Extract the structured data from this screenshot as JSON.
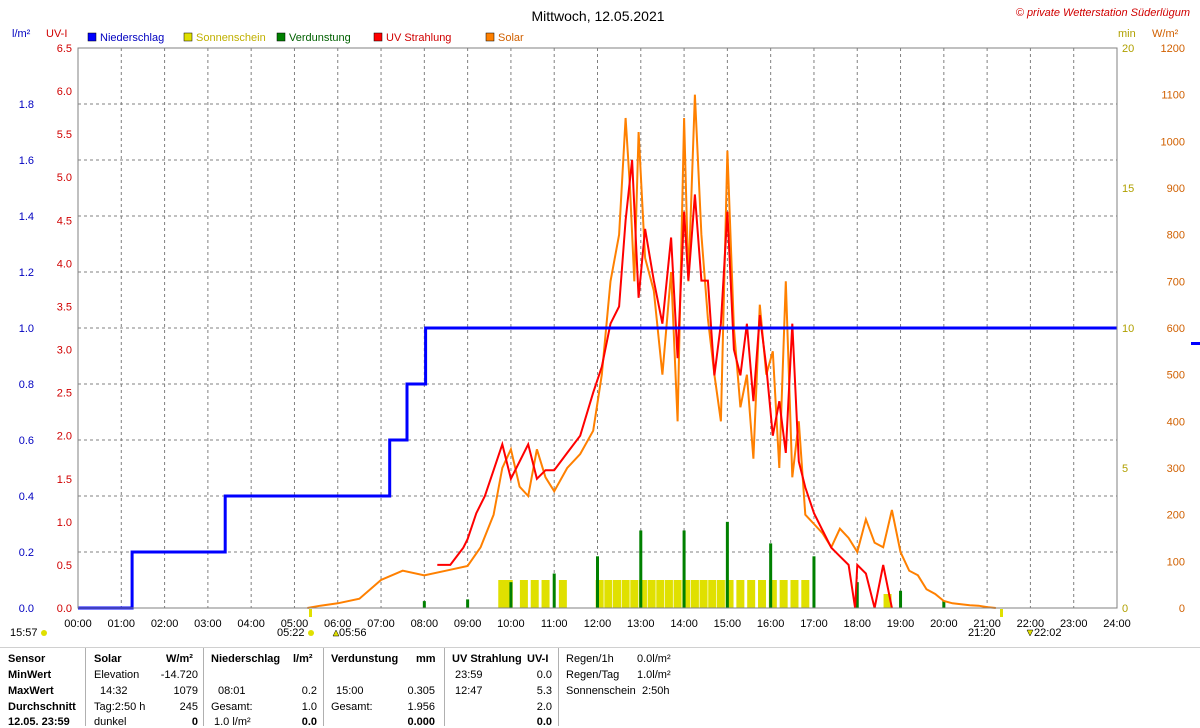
{
  "header": {
    "title": "Mittwoch, 12.05.2021",
    "copyright": "© private Wetterstation Süderlügum",
    "left_unit_1": "l/m²",
    "left_unit_2": "UV-I",
    "right_unit_1": "min",
    "right_unit_2": "W/m²"
  },
  "legend": [
    {
      "label": "Niederschlag",
      "color": "#0000ff"
    },
    {
      "label": "Sonnenschein",
      "color": "#e0e000"
    },
    {
      "label": "Verdunstung",
      "color": "#008000"
    },
    {
      "label": "UV Strahlung",
      "color": "#ff0000"
    },
    {
      "label": "Solar",
      "color": "#ff8000"
    }
  ],
  "chart_data": {
    "type": "line",
    "x_ticks": [
      "00:00",
      "01:00",
      "02:00",
      "03:00",
      "04:00",
      "05:00",
      "06:00",
      "07:00",
      "08:00",
      "09:00",
      "10:00",
      "11:00",
      "12:00",
      "13:00",
      "14:00",
      "15:00",
      "16:00",
      "17:00",
      "18:00",
      "19:00",
      "20:00",
      "21:00",
      "22:00",
      "23:00",
      "24:00"
    ],
    "xlim_hours": [
      0,
      24
    ],
    "axis_rain": {
      "label": "l/m²",
      "range": [
        0,
        2.0
      ],
      "ticks": [
        "0.0",
        "0.2",
        "0.4",
        "0.6",
        "0.8",
        "1.0",
        "1.2",
        "1.4",
        "1.6",
        "1.8"
      ]
    },
    "axis_uv": {
      "label": "UV-I",
      "range": [
        0,
        6.5
      ],
      "ticks": [
        "0.0",
        "0.5",
        "1.0",
        "1.5",
        "2.0",
        "2.5",
        "3.0",
        "3.5",
        "4.0",
        "4.5",
        "5.0",
        "5.5",
        "6.0",
        "6.5"
      ]
    },
    "axis_min": {
      "label": "min",
      "range": [
        0,
        20
      ],
      "ticks": [
        "0",
        "5",
        "10",
        "15",
        "20"
      ]
    },
    "axis_solar": {
      "label": "W/m²",
      "range": [
        0,
        1200
      ],
      "ticks": [
        "0",
        "100",
        "200",
        "300",
        "400",
        "500",
        "600",
        "700",
        "800",
        "900",
        "1000",
        "1100",
        "1200"
      ]
    },
    "grid": true,
    "legend_position": "top-left",
    "series": [
      {
        "name": "Niederschlag",
        "axis": "rain",
        "color": "#0000ff",
        "step": true,
        "x": [
          0.0,
          1.25,
          1.25,
          3.4,
          3.4,
          7.2,
          7.2,
          7.6,
          7.6,
          8.03,
          8.03,
          24.0
        ],
        "y": [
          0.0,
          0.0,
          0.2,
          0.2,
          0.4,
          0.4,
          0.6,
          0.6,
          0.8,
          0.8,
          1.0,
          1.0
        ]
      },
      {
        "name": "Solar",
        "axis": "solar",
        "color": "#ff8000",
        "x": [
          5.3,
          5.6,
          6.0,
          6.5,
          7.0,
          7.5,
          8.0,
          8.5,
          9.0,
          9.3,
          9.6,
          9.8,
          10.0,
          10.2,
          10.4,
          10.6,
          10.8,
          11.0,
          11.3,
          11.6,
          11.9,
          12.1,
          12.3,
          12.5,
          12.65,
          12.75,
          12.85,
          12.95,
          13.1,
          13.3,
          13.5,
          13.7,
          13.85,
          14.0,
          14.1,
          14.25,
          14.4,
          14.55,
          14.7,
          14.85,
          15.0,
          15.15,
          15.3,
          15.45,
          15.6,
          15.75,
          15.9,
          16.05,
          16.2,
          16.35,
          16.5,
          16.65,
          16.8,
          17.0,
          17.2,
          17.4,
          17.6,
          17.8,
          18.0,
          18.2,
          18.4,
          18.6,
          18.8,
          19.0,
          19.2,
          19.4,
          19.6,
          19.8,
          20.0,
          20.2,
          20.4,
          20.6,
          20.8,
          21.0,
          21.2
        ],
        "y": [
          0,
          5,
          10,
          20,
          60,
          80,
          70,
          80,
          90,
          130,
          200,
          300,
          340,
          260,
          240,
          340,
          280,
          250,
          300,
          330,
          380,
          500,
          700,
          800,
          1050,
          900,
          700,
          1020,
          750,
          680,
          500,
          720,
          400,
          1050,
          700,
          1100,
          800,
          620,
          500,
          400,
          980,
          600,
          430,
          500,
          320,
          650,
          500,
          550,
          300,
          700,
          280,
          400,
          200,
          180,
          160,
          130,
          170,
          150,
          120,
          190,
          140,
          130,
          210,
          120,
          80,
          70,
          40,
          30,
          15,
          10,
          8,
          6,
          5,
          2,
          0
        ]
      },
      {
        "name": "UV Strahlung",
        "axis": "uv",
        "color": "#ff0000",
        "x": [
          8.3,
          8.6,
          8.9,
          9.0,
          9.2,
          9.4,
          9.6,
          9.8,
          10.0,
          10.2,
          10.4,
          10.6,
          10.8,
          11.0,
          11.3,
          11.6,
          11.9,
          12.1,
          12.3,
          12.5,
          12.65,
          12.8,
          12.95,
          13.1,
          13.3,
          13.5,
          13.7,
          13.85,
          14.0,
          14.1,
          14.25,
          14.4,
          14.55,
          14.7,
          14.85,
          15.0,
          15.15,
          15.3,
          15.45,
          15.6,
          15.75,
          15.9,
          16.05,
          16.2,
          16.35,
          16.5,
          16.65,
          16.8,
          17.0,
          17.2,
          17.4,
          17.6,
          17.8,
          17.95,
          18.0,
          18.2,
          18.4,
          18.6,
          18.8
        ],
        "y": [
          0.5,
          0.5,
          0.7,
          0.8,
          1.1,
          1.3,
          1.6,
          1.9,
          1.5,
          1.7,
          1.9,
          1.5,
          1.6,
          1.6,
          1.8,
          2.0,
          2.5,
          2.8,
          3.3,
          3.5,
          4.5,
          5.2,
          3.6,
          4.4,
          3.8,
          3.3,
          4.3,
          2.9,
          4.6,
          3.8,
          4.8,
          3.8,
          3.8,
          2.7,
          3.3,
          4.6,
          3.0,
          2.7,
          3.3,
          2.4,
          3.4,
          2.8,
          2.0,
          2.4,
          1.8,
          3.3,
          1.7,
          1.4,
          1.1,
          0.9,
          0.7,
          0.6,
          0.5,
          0.0,
          0.5,
          0.4,
          0.0,
          0.5,
          0.0
        ]
      }
    ],
    "bars": [
      {
        "name": "Sonnenschein",
        "axis": "min",
        "color": "#e0e000",
        "x": [
          9.8,
          9.95,
          10.3,
          10.55,
          10.8,
          11.2,
          12.05,
          12.25,
          12.45,
          12.65,
          12.85,
          13.05,
          13.25,
          13.45,
          13.65,
          13.85,
          14.05,
          14.25,
          14.45,
          14.65,
          14.85,
          15.05,
          15.3,
          15.55,
          15.8,
          16.05,
          16.3,
          16.55,
          16.8,
          18.7
        ],
        "y": [
          1.0,
          1.0,
          1.0,
          1.0,
          1.0,
          1.0,
          1.0,
          1.0,
          1.0,
          1.0,
          1.0,
          1.0,
          1.0,
          1.0,
          1.0,
          1.0,
          1.0,
          1.0,
          1.0,
          1.0,
          1.0,
          1.0,
          1.0,
          1.0,
          1.0,
          1.0,
          1.0,
          1.0,
          1.0,
          0.5
        ]
      },
      {
        "name": "Verdunstung",
        "axis": "uv",
        "color": "#008000",
        "x": [
          8.0,
          9.0,
          10.0,
          11.0,
          12.0,
          13.0,
          14.0,
          15.0,
          16.0,
          17.0,
          18.0,
          19.0,
          20.0
        ],
        "y": [
          0.08,
          0.1,
          0.3,
          0.4,
          0.6,
          0.9,
          0.9,
          1.0,
          0.75,
          0.6,
          0.3,
          0.2,
          0.08
        ]
      }
    ],
    "markers": {
      "left_time": "15:57",
      "sunrise_1": "05:22",
      "sunrise_2": "05:56",
      "sunset_1": "21:20",
      "sunset_2": "22:02"
    }
  },
  "summary": {
    "c1": {
      "h0": "Sensor",
      "r1": "MinWert",
      "r2": "MaxWert",
      "r3": "Durchschnitt",
      "r4": "12.05. 23:59"
    },
    "c2": {
      "h0": "Solar",
      "h1": "W/m²",
      "r1a": "Elevation",
      "r1b": "-14.720",
      "r2a": "14:32",
      "r2b": "1079",
      "r3a": "Tag:2:50 h",
      "r3b": "245",
      "r4a": "dunkel",
      "r4b": "0"
    },
    "c3": {
      "h0": "Niederschlag",
      "h1": "l/m²",
      "r2a": "08:01",
      "r2b": "0.2",
      "r3a": "Gesamt:",
      "r3b": "1.0",
      "r4a": "1.0 l/m²",
      "r4b": "0.0"
    },
    "c4": {
      "h0": "Verdunstung",
      "h1": "mm",
      "r2a": "15:00",
      "r2b": "0.305",
      "r3a": "Gesamt:",
      "r3b": "1.956",
      "r4b": "0.000"
    },
    "c5": {
      "h0": "UV Strahlung",
      "h1": "UV-I",
      "r1a": "23:59",
      "r1b": "0.0",
      "r2a": "12:47",
      "r2b": "5.3",
      "r3b": "2.0",
      "r4b": "0.0"
    },
    "c6": {
      "r0a": "Regen/1h",
      "r0b": "0.0l/m²",
      "r1a": "Regen/Tag",
      "r1b": "1.0l/m²",
      "r2a": "Sonnenschein",
      "r2b": "2:50h"
    }
  }
}
